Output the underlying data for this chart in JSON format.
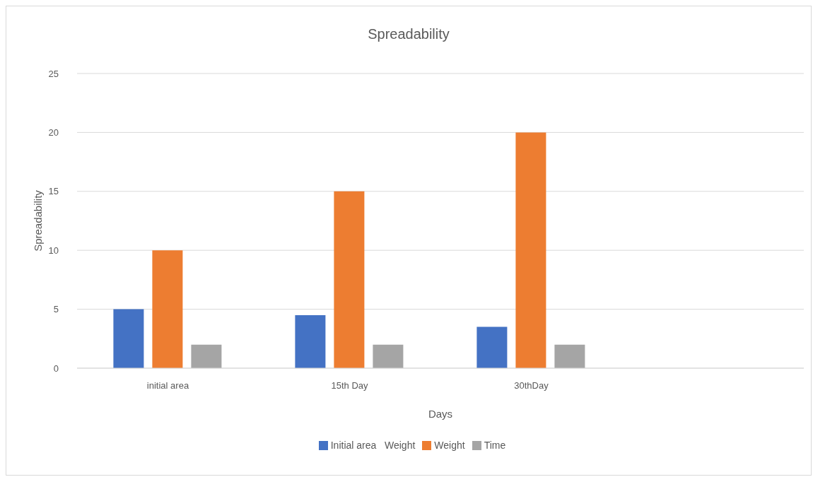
{
  "chart_data": {
    "type": "bar",
    "title": "Spreadability",
    "xlabel": "Days",
    "ylabel": "Spreadability",
    "categories": [
      "initial area",
      "15th Day",
      "30thDay",
      null
    ],
    "series": [
      {
        "name": "Initial area   Weight",
        "color": "#4472c4",
        "values": [
          5,
          4.5,
          3.5,
          null
        ]
      },
      {
        "name": "Weight",
        "color": "#ed7d31",
        "values": [
          10,
          15,
          20,
          null
        ]
      },
      {
        "name": "Time",
        "color": "#a5a5a5",
        "values": [
          2,
          2,
          2,
          null
        ]
      }
    ],
    "ylim": [
      0,
      25
    ],
    "yticks": [
      0,
      5,
      10,
      15,
      20,
      25
    ],
    "grid": "y",
    "legend": "bottom"
  }
}
